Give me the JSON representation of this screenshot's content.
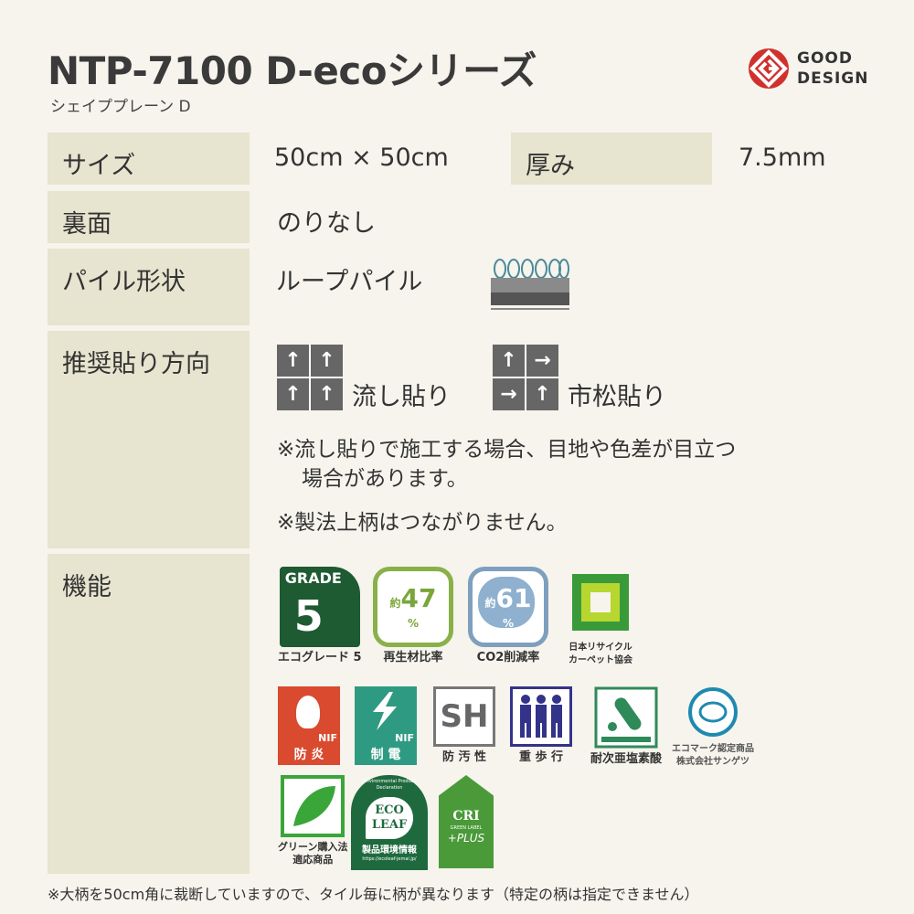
{
  "header": {
    "title": "NTP-7100 D-ecoシリーズ",
    "subtitle": "シェイププレーン D",
    "logo_text": [
      "GOOD",
      "DESIGN"
    ]
  },
  "specs": {
    "size_label": "サイズ",
    "size_value": "50cm × 50cm",
    "thickness_label": "厚み",
    "thickness_value": "7.5mm",
    "backing_label": "裏面",
    "backing_value": "のりなし",
    "pile_label": "パイル形状",
    "pile_value": "ループパイル",
    "direction_label": "推奨貼り方向",
    "direction_options": [
      {
        "label": "流し貼り",
        "arrows": [
          "↑",
          "↑",
          "↑",
          "↑"
        ]
      },
      {
        "label": "市松貼り",
        "arrows": [
          "↑",
          "→",
          "→",
          "↑"
        ]
      }
    ],
    "notes": [
      "※流し貼りで施工する場合、目地や色差が目立つ",
      "場合があります。",
      "※製法上柄はつながりません。"
    ],
    "features_label": "機能"
  },
  "features": {
    "grade": {
      "top": "GRADE",
      "num": "5",
      "caption": "エコグレード 5"
    },
    "recycle": {
      "prefix": "約",
      "value": "47",
      "unit": "%",
      "caption": "再生材比率"
    },
    "co2": {
      "prefix": "約",
      "value": "61",
      "unit": "%",
      "caption": "CO2削減率"
    },
    "carpet_assoc": {
      "caption": [
        "日本リサイクル",
        "カーペット協会"
      ]
    },
    "fire": {
      "mark": "NIF",
      "caption": "防 炎"
    },
    "antistatic": {
      "mark": "NIF",
      "caption": "制 電"
    },
    "stain": {
      "mark": "SH",
      "caption": "防 汚 性"
    },
    "heavy": {
      "caption": "重 歩 行"
    },
    "chlorine": {
      "caption": "耐次亜塩素酸"
    },
    "ecomark": {
      "caption": [
        "エコマーク認定商品",
        "株式会社サンゲツ"
      ]
    },
    "green": {
      "caption": [
        "グリーン購入法",
        "適応商品"
      ]
    },
    "ecoleaf": {
      "arc": "Environmental Product Declaration",
      "mark": [
        "ECO",
        "LEAF"
      ],
      "caption": "製品環境情報",
      "url": "https://ecoleaf-jemai.jp/"
    },
    "cri": {
      "mark": "CRI",
      "label": "GREEN LABEL",
      "plus": "+PLUS"
    }
  },
  "colors": {
    "label_bg": "#e7e4cf",
    "page_bg": "#f6f4ec",
    "accent_red": "#d0312d",
    "dark_green": "#1e5a32"
  },
  "footer": "※大柄を50cm角に裁断していますので、タイル毎に柄が異なります（特定の柄は指定できません）"
}
